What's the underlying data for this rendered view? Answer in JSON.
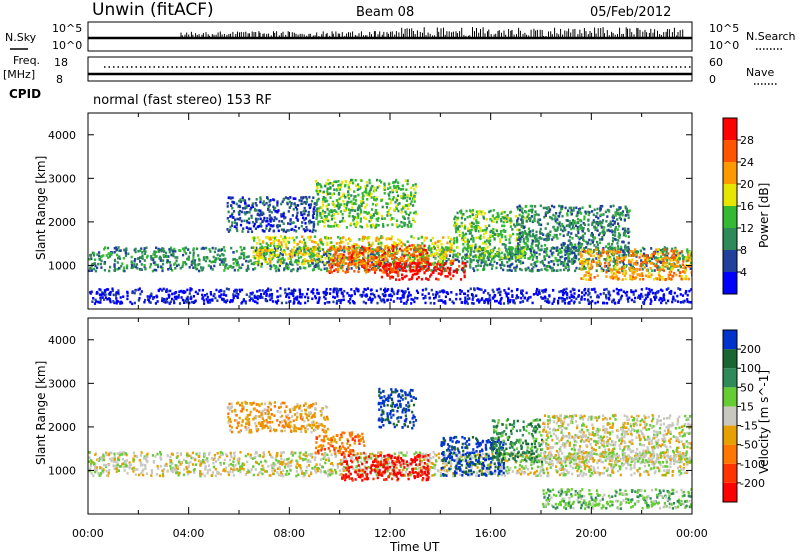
{
  "header": {
    "station": "Unwin (fitACF)",
    "beam": "Beam 08",
    "date": "05/Feb/2012"
  },
  "top_panels": {
    "nsky_label": "N.Sky",
    "nsky_ticks": [
      "10^5",
      "10^0"
    ],
    "nsearch_label": "N.Search",
    "nsearch_ticks": [
      "10^5",
      "10^0"
    ],
    "freq_label_top": "Freq.",
    "freq_label_unit": "[MHz]",
    "freq_ticks": [
      "18",
      "8"
    ],
    "nave_label": "Nave",
    "nave_ticks": [
      "60",
      "0"
    ],
    "cpid_label": "CPID",
    "cpid_text": "normal (fast stereo) 153 RF"
  },
  "chart_data": [
    {
      "type": "heatmap",
      "name": "power",
      "xlabel": "",
      "ylabel": "Slant Range [km]",
      "ylim": [
        0,
        4500
      ],
      "xlim": [
        0,
        24
      ],
      "y_ticks": [
        "1000",
        "2000",
        "3000",
        "4000"
      ],
      "colorbar_label": "Power [dB]",
      "colorbar_ticks": [
        "4",
        "8",
        "12",
        "16",
        "20",
        "24",
        "28"
      ],
      "colors": [
        "#0000ff",
        "#20409c",
        "#2e8b57",
        "#33b933",
        "#e6e600",
        "#ff9900",
        "#ff5500",
        "#ff0000"
      ],
      "scatter_regions": [
        {
          "t0": 0.0,
          "t1": 24.0,
          "r0": 900,
          "r1": 1450,
          "level": 2
        },
        {
          "t0": 6.5,
          "t1": 14.5,
          "r0": 1050,
          "r1": 1700,
          "level": 4
        },
        {
          "t0": 9.5,
          "t1": 13.5,
          "r0": 850,
          "r1": 1500,
          "level": 6
        },
        {
          "t0": 11.5,
          "t1": 15.0,
          "r0": 700,
          "r1": 1100,
          "level": 7
        },
        {
          "t0": 5.5,
          "t1": 9.0,
          "r0": 1800,
          "r1": 2600,
          "level": 1
        },
        {
          "t0": 9.0,
          "t1": 13.0,
          "r0": 1900,
          "r1": 3000,
          "level": 3
        },
        {
          "t0": 14.5,
          "t1": 17.5,
          "r0": 1200,
          "r1": 2300,
          "level": 3
        },
        {
          "t0": 17.0,
          "t1": 21.5,
          "r0": 1300,
          "r1": 2400,
          "level": 2
        },
        {
          "t0": 19.5,
          "t1": 24.0,
          "r0": 700,
          "r1": 1400,
          "level": 5
        },
        {
          "t0": 0.0,
          "t1": 24.0,
          "r0": 150,
          "r1": 500,
          "level": 0
        }
      ]
    },
    {
      "type": "heatmap",
      "name": "velocity",
      "xlabel": "Time UT",
      "ylabel": "Slant Range [km]",
      "ylim": [
        0,
        4500
      ],
      "xlim": [
        0,
        24
      ],
      "x_ticks": [
        "00:00",
        "04:00",
        "08:00",
        "12:00",
        "16:00",
        "20:00",
        "00:00"
      ],
      "y_ticks": [
        "1000",
        "2000",
        "3000",
        "4000"
      ],
      "colorbar_label": "Velocity [m s^-1]",
      "colorbar_ticks": [
        "200",
        "100",
        "50",
        "15",
        "-15",
        "-50",
        "-100",
        "-200"
      ],
      "colors": [
        "#0033cc",
        "#1a6633",
        "#2e8b57",
        "#66cc33",
        "#c8c8c0",
        "#e6a000",
        "#ff7700",
        "#ff3300",
        "#ff0000"
      ],
      "scatter_regions": [
        {
          "t0": 0.0,
          "t1": 24.0,
          "r0": 900,
          "r1": 1450,
          "level": 4
        },
        {
          "t0": 5.5,
          "t1": 9.5,
          "r0": 1900,
          "r1": 2600,
          "level": 5
        },
        {
          "t0": 9.0,
          "t1": 11.0,
          "r0": 1400,
          "r1": 1900,
          "level": 6
        },
        {
          "t0": 10.0,
          "t1": 13.5,
          "r0": 800,
          "r1": 1400,
          "level": 8
        },
        {
          "t0": 14.0,
          "t1": 16.5,
          "r0": 900,
          "r1": 1800,
          "level": 0
        },
        {
          "t0": 11.5,
          "t1": 13.0,
          "r0": 2000,
          "r1": 2900,
          "level": 0
        },
        {
          "t0": 16.0,
          "t1": 18.0,
          "r0": 1200,
          "r1": 2200,
          "level": 2
        },
        {
          "t0": 18.0,
          "t1": 24.0,
          "r0": 1200,
          "r1": 2300,
          "level": 4
        },
        {
          "t0": 18.0,
          "t1": 24.0,
          "r0": 150,
          "r1": 600,
          "level": 3
        }
      ]
    }
  ]
}
